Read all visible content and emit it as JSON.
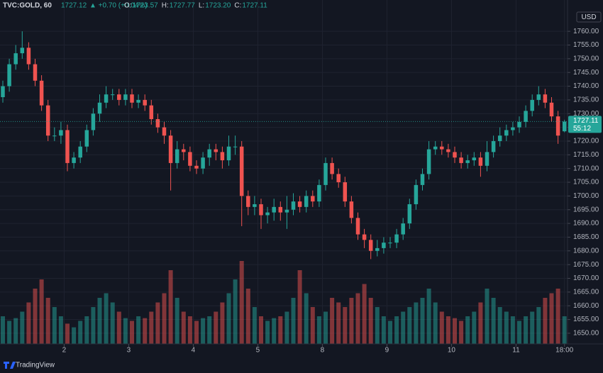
{
  "header": {
    "symbol": "TVC:GOLD, 60",
    "last": "1727.12",
    "change": "▲ +0.70 (+0.04%)",
    "ohlc": [
      {
        "label": "O:",
        "value": "1723.57"
      },
      {
        "label": "H:",
        "value": "1727.77"
      },
      {
        "label": "L:",
        "value": "1723.20"
      },
      {
        "label": "C:",
        "value": "1727.11"
      }
    ]
  },
  "currency": "USD",
  "countdown": "55:12",
  "brand": "TradingView",
  "chart_data": {
    "type": "candlestick",
    "up_color": "#26a69a",
    "down_color": "#ef5350",
    "open": [
      1736,
      1740,
      1748,
      1752,
      1754,
      1748,
      1742,
      1733,
      1722,
      1722,
      1724,
      1712,
      1714,
      1718,
      1724,
      1730,
      1734,
      1737,
      1737,
      1735,
      1737,
      1734,
      1735,
      1733,
      1728,
      1725,
      1722,
      1712,
      1717,
      1716,
      1711,
      1710,
      1714,
      1717,
      1716,
      1713,
      1718,
      1718,
      1700,
      1696,
      1697,
      1693,
      1694,
      1696,
      1694,
      1695,
      1698,
      1696,
      1700,
      1698,
      1704,
      1712,
      1708,
      1705,
      1698,
      1692,
      1686,
      1684,
      1680,
      1681,
      1683,
      1683,
      1686,
      1690,
      1697,
      1704,
      1708,
      1717,
      1718,
      1717,
      1716,
      1714,
      1712,
      1713,
      1714,
      1711,
      1716,
      1720,
      1722,
      1724,
      1725,
      1727,
      1731,
      1735,
      1737,
      1734,
      1729,
      1723.57
    ],
    "high": [
      1742,
      1750,
      1755,
      1760,
      1756,
      1750,
      1744,
      1735,
      1725,
      1727,
      1726,
      1716,
      1720,
      1726,
      1732,
      1737,
      1740,
      1739,
      1739,
      1739,
      1739,
      1737,
      1737,
      1735,
      1730,
      1727,
      1724,
      1720,
      1719,
      1718,
      1713,
      1716,
      1719,
      1719,
      1718,
      1722,
      1722,
      1720,
      1702,
      1700,
      1699,
      1696,
      1699,
      1698,
      1700,
      1701,
      1700,
      1702,
      1702,
      1706,
      1714,
      1714,
      1710,
      1707,
      1700,
      1694,
      1688,
      1686,
      1684,
      1685,
      1685,
      1688,
      1692,
      1699,
      1706,
      1710,
      1720,
      1720,
      1720,
      1719,
      1718,
      1716,
      1715,
      1716,
      1716,
      1720,
      1722,
      1725,
      1726,
      1727,
      1729,
      1733,
      1737,
      1740,
      1739,
      1736,
      1731,
      1727.77
    ],
    "low": [
      1734,
      1738,
      1746,
      1750,
      1746,
      1740,
      1731,
      1720,
      1720,
      1719,
      1709,
      1710,
      1712,
      1716,
      1722,
      1727,
      1732,
      1735,
      1733,
      1733,
      1732,
      1732,
      1731,
      1726,
      1723,
      1719,
      1702,
      1710,
      1713,
      1709,
      1708,
      1708,
      1711,
      1713,
      1710,
      1711,
      1715,
      1689,
      1693,
      1693,
      1688,
      1690,
      1691,
      1691,
      1688,
      1693,
      1694,
      1694,
      1696,
      1696,
      1702,
      1706,
      1703,
      1696,
      1690,
      1684,
      1681,
      1677,
      1678,
      1679,
      1681,
      1681,
      1684,
      1688,
      1695,
      1702,
      1706,
      1715,
      1715,
      1714,
      1712,
      1710,
      1710,
      1711,
      1707,
      1709,
      1714,
      1718,
      1720,
      1722,
      1723,
      1725,
      1729,
      1733,
      1732,
      1727,
      1719,
      1723.2
    ],
    "close": [
      1740,
      1748,
      1752,
      1754,
      1748,
      1742,
      1733,
      1722,
      1722,
      1724,
      1712,
      1714,
      1718,
      1724,
      1730,
      1734,
      1737,
      1737,
      1735,
      1737,
      1734,
      1735,
      1733,
      1728,
      1725,
      1722,
      1712,
      1717,
      1716,
      1711,
      1710,
      1714,
      1717,
      1716,
      1713,
      1718,
      1718,
      1700,
      1696,
      1697,
      1693,
      1694,
      1696,
      1694,
      1695,
      1698,
      1696,
      1700,
      1698,
      1704,
      1712,
      1708,
      1705,
      1698,
      1692,
      1686,
      1684,
      1680,
      1681,
      1683,
      1683,
      1686,
      1690,
      1697,
      1704,
      1708,
      1717,
      1718,
      1717,
      1716,
      1714,
      1712,
      1713,
      1714,
      1711,
      1716,
      1720,
      1722,
      1724,
      1725,
      1727,
      1731,
      1735,
      1737,
      1734,
      1729,
      1722,
      1727.11
    ],
    "volume": [
      30,
      25,
      28,
      35,
      45,
      60,
      70,
      50,
      40,
      30,
      22,
      18,
      25,
      30,
      40,
      50,
      55,
      45,
      35,
      28,
      25,
      30,
      28,
      35,
      45,
      55,
      80,
      50,
      35,
      30,
      25,
      28,
      30,
      35,
      45,
      55,
      70,
      90,
      60,
      40,
      30,
      25,
      28,
      30,
      35,
      50,
      80,
      55,
      40,
      30,
      35,
      50,
      45,
      40,
      50,
      55,
      65,
      50,
      40,
      30,
      25,
      30,
      35,
      40,
      45,
      50,
      60,
      45,
      35,
      30,
      28,
      25,
      30,
      35,
      45,
      60,
      50,
      40,
      35,
      30,
      25,
      30,
      35,
      40,
      50,
      55,
      60,
      30
    ],
    "volume_lim": [
      0,
      100
    ],
    "ylim": [
      1646.1,
      1771.4
    ],
    "yticks": [
      {
        "value": 1650,
        "label": "1650.00"
      },
      {
        "value": 1655,
        "label": "1655.00"
      },
      {
        "value": 1660,
        "label": "1660.00"
      },
      {
        "value": 1665,
        "label": "1665.00"
      },
      {
        "value": 1670,
        "label": "1670.00"
      },
      {
        "value": 1675,
        "label": "1675.00"
      },
      {
        "value": 1680,
        "label": "1680.00"
      },
      {
        "value": 1685,
        "label": "1685.00"
      },
      {
        "value": 1690,
        "label": "1690.00"
      },
      {
        "value": 1695,
        "label": "1695.00"
      },
      {
        "value": 1700,
        "label": "1700.00"
      },
      {
        "value": 1705,
        "label": "1705.00"
      },
      {
        "value": 1710,
        "label": "1710.00"
      },
      {
        "value": 1715,
        "label": "1715.00"
      },
      {
        "value": 1720,
        "label": "1720.00"
      },
      {
        "value": 1725,
        "label": "1725.00"
      },
      {
        "value": 1730,
        "label": "1730.00"
      },
      {
        "value": 1735,
        "label": "1735.00"
      },
      {
        "value": 1740,
        "label": "1740.00"
      },
      {
        "value": 1745,
        "label": "1745.00"
      },
      {
        "value": 1750,
        "label": "1750.00"
      },
      {
        "value": 1755,
        "label": "1755.00"
      },
      {
        "value": 1760,
        "label": "1760.00"
      }
    ],
    "xticks": [
      {
        "value": 9.5,
        "label": "2"
      },
      {
        "value": 19.5,
        "label": "3"
      },
      {
        "value": 29.5,
        "label": "4"
      },
      {
        "value": 39.5,
        "label": "5"
      },
      {
        "value": 49.5,
        "label": "8"
      },
      {
        "value": 59.5,
        "label": "9"
      },
      {
        "value": 69.5,
        "label": "10"
      },
      {
        "value": 79.5,
        "label": "11"
      },
      {
        "value": 87,
        "label": "18:00"
      }
    ],
    "grid": true
  }
}
